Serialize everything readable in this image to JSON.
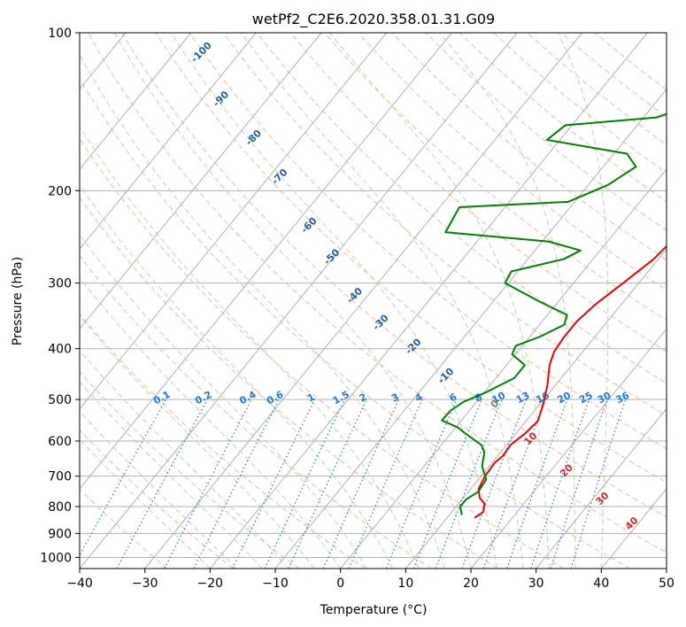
{
  "chart_data": {
    "type": "line",
    "title": "wetPf2_C2E6.2020.358.01.31.G09",
    "xlabel": "Temperature (°C)",
    "ylabel": "Pressure (hPa)",
    "xlim": [
      -40,
      50
    ],
    "ylim": [
      1050,
      100
    ],
    "y_scale": "log",
    "x_ticks": [
      "-40",
      "-30",
      "-20",
      "-10",
      "0",
      "10",
      "20",
      "30",
      "40",
      "50"
    ],
    "y_ticks": [
      "100",
      "200",
      "300",
      "400",
      "500",
      "600",
      "700",
      "800",
      "900",
      "1000"
    ],
    "grid": true,
    "skew": true,
    "background_lines": {
      "isotherms_color": "#b0b0b0",
      "dry_adiabats_color": "#f4a582",
      "moist_adiabats_color": "#a6d8a0",
      "mixing_ratio_color": "#1f78d4"
    },
    "series": [
      {
        "color": "#ee0000",
        "points": [
          [
            14.2,
            840
          ],
          [
            14.8,
            820
          ],
          [
            14.0,
            790
          ],
          [
            12.5,
            770
          ],
          [
            11.2,
            740
          ],
          [
            10.6,
            700
          ],
          [
            10.4,
            660
          ],
          [
            10.8,
            640
          ],
          [
            10.6,
            610
          ],
          [
            11.4,
            580
          ],
          [
            11.8,
            550
          ],
          [
            10.5,
            510
          ],
          [
            8.8,
            470
          ],
          [
            6.6,
            430
          ],
          [
            5.6,
            405
          ],
          [
            5.3,
            380
          ],
          [
            5.3,
            355
          ],
          [
            6.0,
            330
          ],
          [
            7.6,
            300
          ],
          [
            9.3,
            270
          ],
          [
            9.9,
            245
          ],
          [
            10.2,
            225
          ],
          [
            9.4,
            200
          ],
          [
            8.9,
            185
          ],
          [
            8.3,
            170
          ],
          [
            8.3,
            160
          ],
          [
            8.6,
            150
          ],
          [
            9.0,
            140
          ],
          [
            9.5,
            130
          ],
          [
            11.0,
            120
          ],
          [
            12.5,
            110
          ],
          [
            14.5,
            100
          ]
        ]
      },
      {
        "color": "#008000",
        "points": [
          [
            11.9,
            830
          ],
          [
            10.6,
            800
          ],
          [
            10.6,
            775
          ],
          [
            11.5,
            750
          ],
          [
            11.2,
            710
          ],
          [
            8.9,
            670
          ],
          [
            7.5,
            630
          ],
          [
            6.1,
            610
          ],
          [
            4.8,
            600
          ],
          [
            2.2,
            580
          ],
          [
            0.3,
            565
          ],
          [
            -3.0,
            548
          ],
          [
            -2.9,
            525
          ],
          [
            -2.0,
            505
          ],
          [
            0.2,
            485
          ],
          [
            2.8,
            455
          ],
          [
            2.8,
            430
          ],
          [
            -0.5,
            410
          ],
          [
            -1.0,
            395
          ],
          [
            1.5,
            380
          ],
          [
            3.8,
            360
          ],
          [
            3.0,
            345
          ],
          [
            -3.0,
            325
          ],
          [
            -10.5,
            300
          ],
          [
            -11.0,
            285
          ],
          [
            -4.5,
            270
          ],
          [
            -3.0,
            260
          ],
          [
            -9.0,
            250
          ],
          [
            -26.0,
            240
          ],
          [
            -27.0,
            215
          ],
          [
            -11.0,
            210
          ],
          [
            -7.0,
            195
          ],
          [
            -5.0,
            180
          ],
          [
            -8.0,
            170
          ],
          [
            -22.0,
            160
          ],
          [
            -21.0,
            150
          ],
          [
            -8.0,
            145
          ],
          [
            -2.5,
            135
          ],
          [
            -0.5,
            125
          ],
          [
            3.0,
            115
          ],
          [
            9.5,
            100
          ]
        ]
      }
    ],
    "annotations": {
      "dry_adiabat_labels": [
        {
          "text": "-100",
          "color": "#1f5f9f"
        },
        {
          "text": "-90",
          "color": "#1f5f9f"
        },
        {
          "text": "-80",
          "color": "#1f5f9f"
        },
        {
          "text": "-70",
          "color": "#1f5f9f"
        },
        {
          "text": "-60",
          "color": "#1f5f9f"
        },
        {
          "text": "-50",
          "color": "#1f5f9f"
        },
        {
          "text": "-40",
          "color": "#1f5f9f"
        },
        {
          "text": "-30",
          "color": "#1f5f9f"
        },
        {
          "text": "-20",
          "color": "#1f5f9f"
        },
        {
          "text": "-10",
          "color": "#1f5f9f"
        },
        {
          "text": "0",
          "color": "#777777"
        },
        {
          "text": "10",
          "color": "#d62728"
        },
        {
          "text": "20",
          "color": "#d62728"
        },
        {
          "text": "30",
          "color": "#d62728"
        },
        {
          "text": "40",
          "color": "#d62728"
        }
      ],
      "mixing_ratio_labels": [
        "0.1",
        "0.2",
        "0.4",
        "0.6",
        "1",
        "1.5",
        "2",
        "3",
        "4",
        "6",
        "8",
        "10",
        "13",
        "16",
        "20",
        "25",
        "30",
        "36"
      ]
    }
  }
}
